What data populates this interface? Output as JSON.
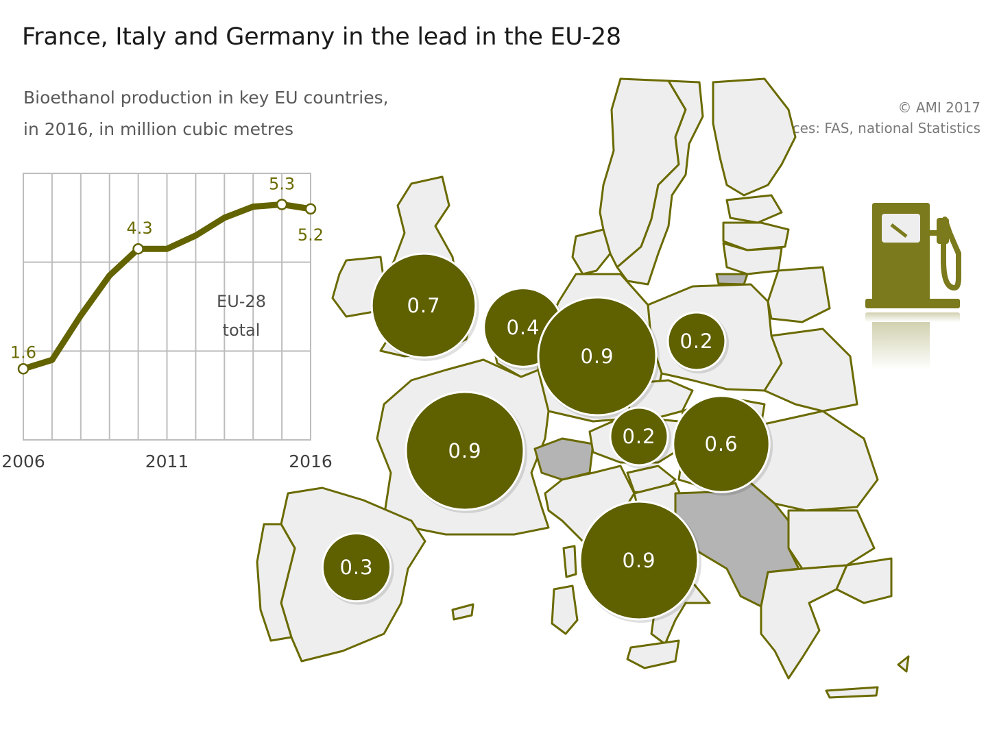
{
  "title": "France, Italy and Germany in the lead in the EU-28",
  "subtitle_lines": [
    "Bioethanol production in key EU countries,",
    "in 2016, in million cubic metres"
  ],
  "credits": {
    "copyright": "© AMI 2017",
    "sources": "Sources: FAS, national Statistics"
  },
  "colors": {
    "bubble": "#5f6000",
    "line": "#636300",
    "country_fill": "#eeeeee",
    "country_border": "#6a6a00",
    "non_eu_fill": "#b4b4b4",
    "fuel_pump": "#7b7a1c"
  },
  "icon": "fuel-pump-icon",
  "map": {
    "bubbles": [
      {
        "country": "United Kingdom",
        "value": 0.7
      },
      {
        "country": "Belgium/Netherlands",
        "value": 0.4
      },
      {
        "country": "Germany",
        "value": 0.9
      },
      {
        "country": "Poland",
        "value": 0.2
      },
      {
        "country": "France",
        "value": 0.9
      },
      {
        "country": "Austria",
        "value": 0.2
      },
      {
        "country": "Hungary",
        "value": 0.6
      },
      {
        "country": "Spain",
        "value": 0.3
      },
      {
        "country": "Italy",
        "value": 0.9
      }
    ]
  },
  "chart_data": {
    "type": "line",
    "x": [
      2006,
      2007,
      2008,
      2009,
      2010,
      2011,
      2012,
      2013,
      2014,
      2015,
      2016
    ],
    "series": [
      {
        "name": "EU-28 total",
        "values": [
          1.6,
          1.8,
          2.8,
          3.7,
          4.3,
          4.3,
          4.6,
          5.0,
          5.25,
          5.3,
          5.2
        ]
      }
    ],
    "labeled_points": [
      {
        "x": 2006,
        "label": "1.6"
      },
      {
        "x": 2010,
        "label": "4.3"
      },
      {
        "x": 2015,
        "label": "5.3"
      },
      {
        "x": 2016,
        "label": "5.2"
      }
    ],
    "x_ticks": [
      "2006",
      "2011",
      "2016"
    ],
    "series_label_lines": [
      "EU-28",
      "total"
    ],
    "ylim": [
      0,
      6
    ],
    "grid": true
  }
}
